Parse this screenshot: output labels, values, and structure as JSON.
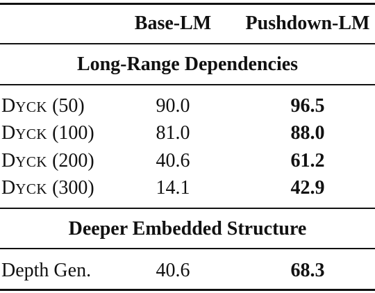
{
  "columns": {
    "model_a": "Base-LM",
    "model_b": "Pushdown-LM"
  },
  "sections": [
    {
      "title": "Long-Range Dependencies",
      "rows": [
        {
          "name_prefix": "D",
          "name_smallcaps": "YCK",
          "name_suffix": " (50)",
          "base": "90.0",
          "push": "96.5"
        },
        {
          "name_prefix": "D",
          "name_smallcaps": "YCK",
          "name_suffix": " (100)",
          "base": "81.0",
          "push": "88.0"
        },
        {
          "name_prefix": "D",
          "name_smallcaps": "YCK",
          "name_suffix": " (200)",
          "base": "40.6",
          "push": "61.2"
        },
        {
          "name_prefix": "D",
          "name_smallcaps": "YCK",
          "name_suffix": " (300)",
          "base": "14.1",
          "push": "42.9"
        }
      ]
    },
    {
      "title": "Deeper Embedded Structure",
      "rows": [
        {
          "name": "Depth Gen.",
          "base": "40.6",
          "push": "68.3"
        }
      ]
    }
  ]
}
